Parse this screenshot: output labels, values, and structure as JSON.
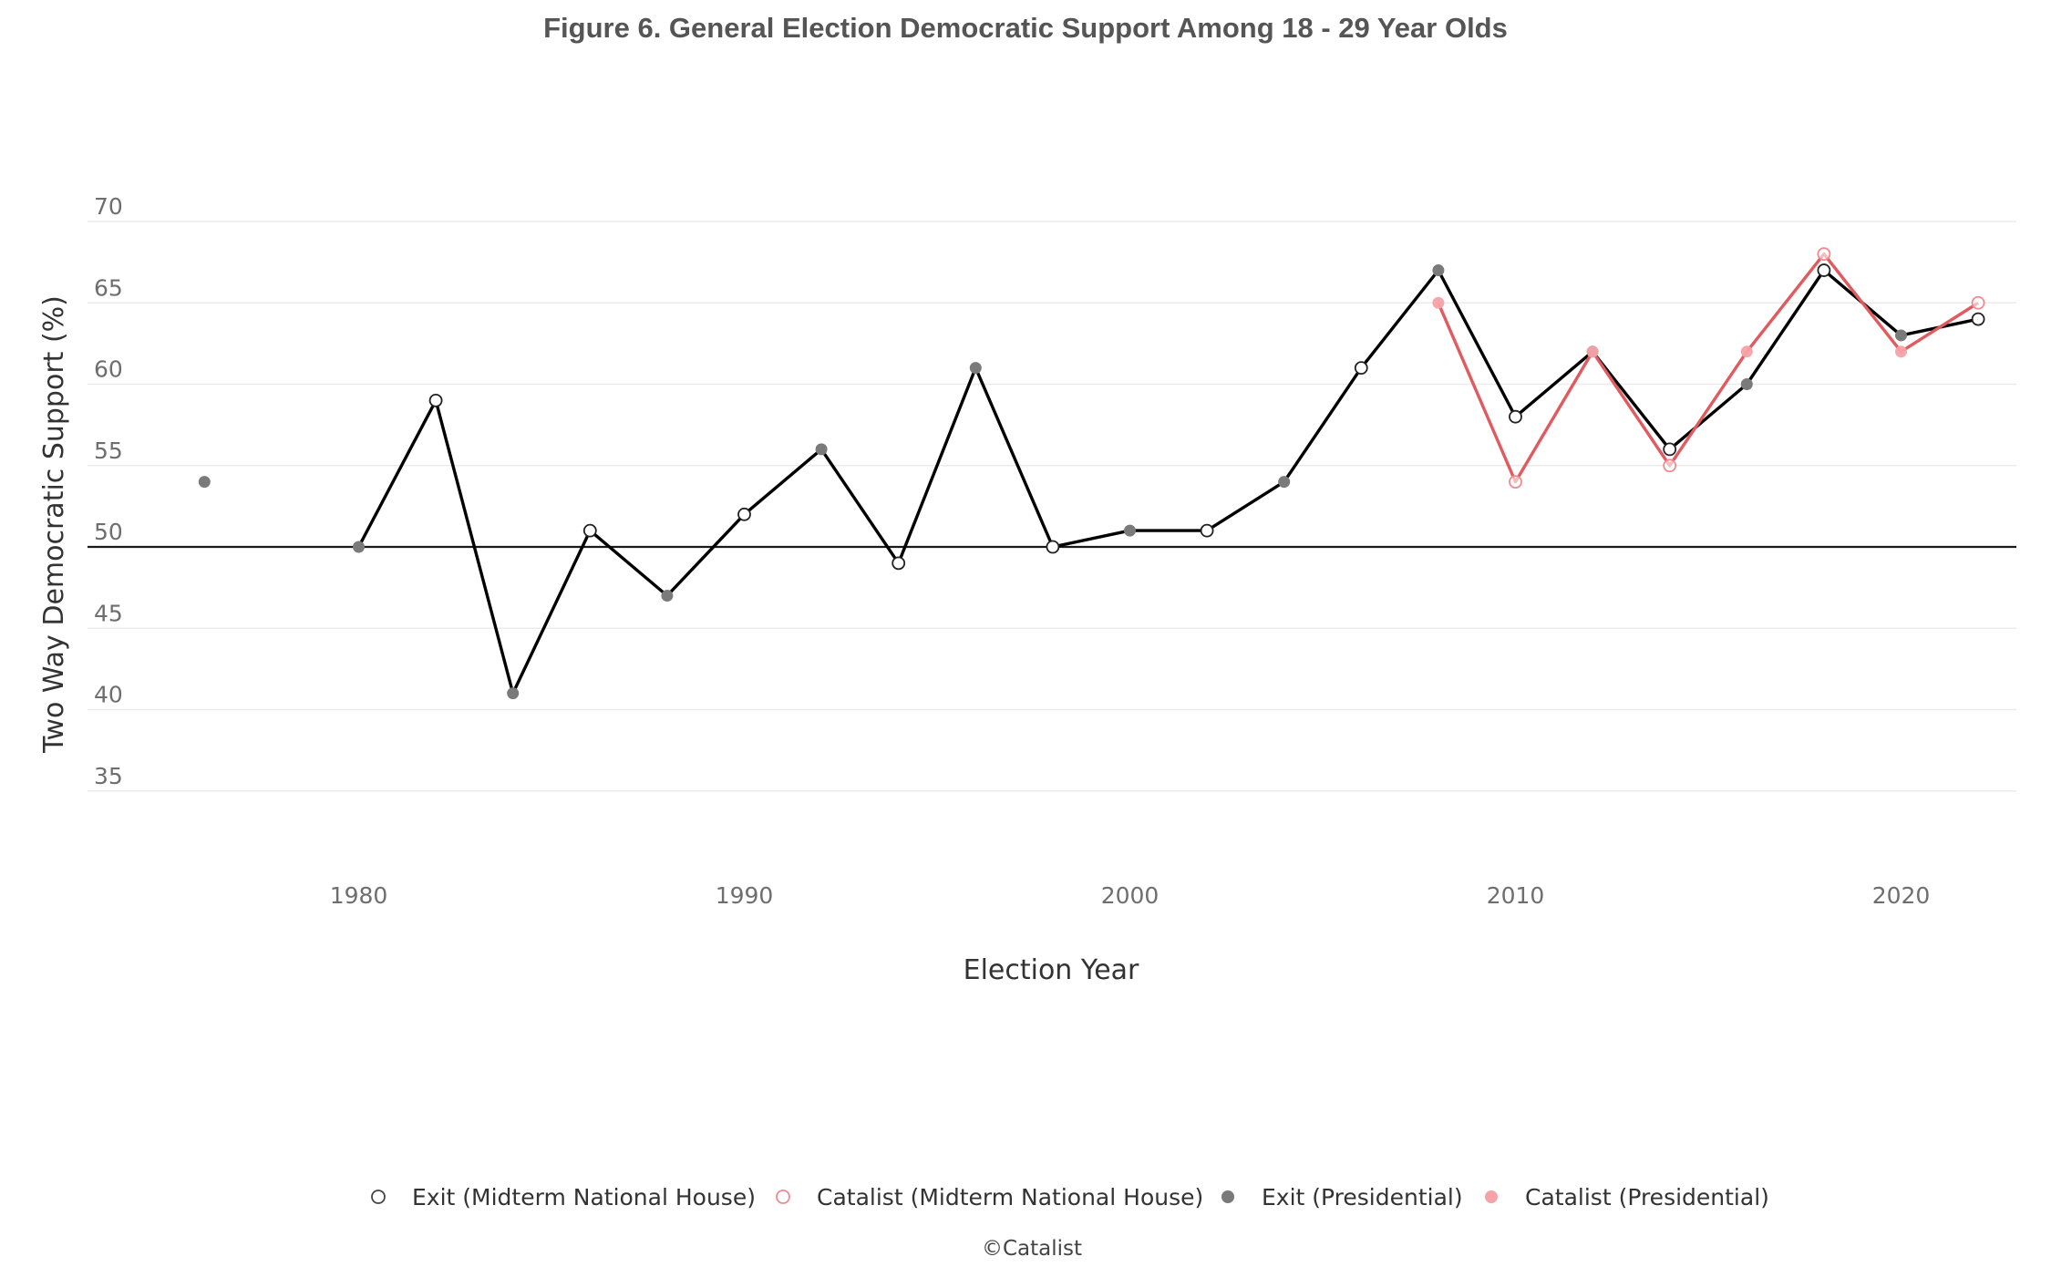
{
  "chart_data": {
    "type": "line",
    "title": "Figure 6. General Election Democratic Support Among 18 - 29 Year Olds",
    "xlabel": "Election Year",
    "ylabel": "Two Way Democratic Support (%)",
    "xlim": [
      1975,
      2024
    ],
    "ylim": [
      33,
      71
    ],
    "x_ticks": [
      1980,
      1990,
      2000,
      2010,
      2020
    ],
    "y_ticks": [
      35,
      40,
      45,
      50,
      55,
      60,
      65,
      70
    ],
    "reference_line": 50,
    "grid": "horizontal",
    "legend_position": "bottom",
    "colors": {
      "exit_line": "#000000",
      "catalist_line": "#e05a5f",
      "exit_presidential_marker": "#7a7a7a",
      "catalist_presidential_marker": "#f4a3a6",
      "catalist_midterm_marker": "#f08a8e",
      "exit_midterm_marker": "#444444"
    },
    "series": [
      {
        "name": "Exit",
        "line": true,
        "points": [
          {
            "x": 1976,
            "y": 54,
            "kind": "presidential",
            "connected": false
          },
          {
            "x": 1980,
            "y": 50,
            "kind": "presidential"
          },
          {
            "x": 1982,
            "y": 59,
            "kind": "midterm"
          },
          {
            "x": 1984,
            "y": 41,
            "kind": "presidential"
          },
          {
            "x": 1986,
            "y": 51,
            "kind": "midterm"
          },
          {
            "x": 1988,
            "y": 47,
            "kind": "presidential"
          },
          {
            "x": 1990,
            "y": 52,
            "kind": "midterm"
          },
          {
            "x": 1992,
            "y": 56,
            "kind": "presidential"
          },
          {
            "x": 1994,
            "y": 49,
            "kind": "midterm"
          },
          {
            "x": 1996,
            "y": 61,
            "kind": "presidential"
          },
          {
            "x": 1998,
            "y": 50,
            "kind": "midterm"
          },
          {
            "x": 2000,
            "y": 51,
            "kind": "presidential"
          },
          {
            "x": 2002,
            "y": 51,
            "kind": "midterm"
          },
          {
            "x": 2004,
            "y": 54,
            "kind": "presidential"
          },
          {
            "x": 2006,
            "y": 61,
            "kind": "midterm"
          },
          {
            "x": 2008,
            "y": 67,
            "kind": "presidential"
          },
          {
            "x": 2010,
            "y": 58,
            "kind": "midterm"
          },
          {
            "x": 2012,
            "y": 62,
            "kind": "presidential"
          },
          {
            "x": 2014,
            "y": 56,
            "kind": "midterm"
          },
          {
            "x": 2016,
            "y": 60,
            "kind": "presidential"
          },
          {
            "x": 2018,
            "y": 67,
            "kind": "midterm"
          },
          {
            "x": 2020,
            "y": 63,
            "kind": "presidential"
          },
          {
            "x": 2022,
            "y": 64,
            "kind": "midterm"
          }
        ]
      },
      {
        "name": "Catalist",
        "line": true,
        "points": [
          {
            "x": 2008,
            "y": 65,
            "kind": "presidential"
          },
          {
            "x": 2010,
            "y": 54,
            "kind": "midterm"
          },
          {
            "x": 2012,
            "y": 62,
            "kind": "presidential"
          },
          {
            "x": 2014,
            "y": 55,
            "kind": "midterm"
          },
          {
            "x": 2016,
            "y": 62,
            "kind": "presidential"
          },
          {
            "x": 2018,
            "y": 68,
            "kind": "midterm"
          },
          {
            "x": 2020,
            "y": 62,
            "kind": "presidential"
          },
          {
            "x": 2022,
            "y": 65,
            "kind": "midterm"
          }
        ]
      }
    ],
    "legend": [
      {
        "label": "Exit (Midterm National House)",
        "marker": "open",
        "color": "#444444"
      },
      {
        "label": "Catalist (Midterm National House)",
        "marker": "open",
        "color": "#f08a8e"
      },
      {
        "label": "Exit (Presidential)",
        "marker": "filled",
        "color": "#7a7a7a"
      },
      {
        "label": "Catalist (Presidential)",
        "marker": "filled",
        "color": "#f4a3a6"
      }
    ],
    "credit": "©Catalist"
  }
}
